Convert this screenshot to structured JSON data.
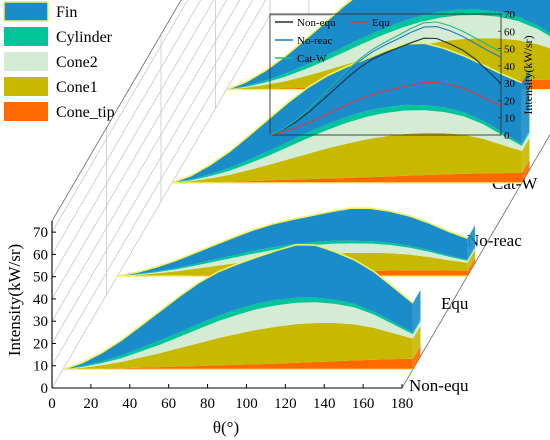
{
  "chart_data": {
    "type": "area",
    "x": [
      0,
      10,
      20,
      30,
      40,
      50,
      60,
      70,
      80,
      90,
      100,
      110,
      120,
      130,
      140,
      150,
      160,
      170,
      180
    ],
    "xlabel": "θ(°)",
    "xticks": [
      "0",
      "20",
      "40",
      "60",
      "80",
      "100",
      "120",
      "140",
      "160",
      "180"
    ],
    "xlim": [
      0,
      180
    ],
    "ylabel": "Intensity(kW/sr)",
    "yticks": [
      "0",
      "10",
      "20",
      "30",
      "40",
      "50",
      "60",
      "70"
    ],
    "ylim": [
      0,
      75
    ],
    "stack_order": [
      "Cone_tip",
      "Cone1",
      "Cone2",
      "Cylinder",
      "Fin"
    ],
    "legend": [
      {
        "name": "Fin",
        "color": "#1a8cca"
      },
      {
        "name": "Cylinder",
        "color": "#00c49a"
      },
      {
        "name": "Cone2",
        "color": "#d3ecd3"
      },
      {
        "name": "Cone1",
        "color": "#c7b800"
      },
      {
        "name": "Cone_tip",
        "color": "#ff6a00"
      }
    ],
    "total_line_color": "#f2f25a",
    "cases": [
      {
        "name": "Non-equ",
        "components": {
          "Cone_tip": [
            0,
            0.1,
            0.3,
            0.5,
            0.8,
            1.0,
            1.3,
            1.5,
            1.8,
            2.0,
            2.3,
            2.6,
            3.0,
            3.3,
            3.6,
            4.0,
            4.3,
            4.6,
            4.8
          ],
          "Cone1": [
            0,
            0.6,
            1.5,
            2.8,
            4.5,
            6.3,
            8.3,
            10.3,
            12.3,
            14.0,
            15.5,
            16.6,
            17.3,
            17.5,
            17.2,
            16.2,
            14.3,
            11.6,
            9.0
          ],
          "Cone2": [
            0,
            0.4,
            1.0,
            1.7,
            2.7,
            3.8,
            5.0,
            6.4,
            7.6,
            8.6,
            9.3,
            9.6,
            9.6,
            9.3,
            8.6,
            7.6,
            6.0,
            4.0,
            2.0
          ],
          "Cylinder": [
            0,
            0.4,
            0.8,
            1.2,
            1.6,
            1.9,
            2.1,
            2.3,
            2.4,
            2.5,
            2.5,
            2.4,
            2.3,
            2.1,
            1.9,
            1.6,
            1.3,
            1.0,
            0.8
          ],
          "Fin": [
            0,
            1.5,
            3.9,
            6.8,
            10.0,
            13.2,
            16.2,
            18.5,
            19.8,
            20.3,
            20.9,
            22.2,
            23.8,
            23.6,
            21.5,
            19.7,
            18.0,
            15.7,
            13.2
          ]
        },
        "total": [
          0,
          3.0,
          7.5,
          13.0,
          19.6,
          26.2,
          32.9,
          39.0,
          43.9,
          47.4,
          50.5,
          53.4,
          56.0,
          55.8,
          52.8,
          49.1,
          43.9,
          36.9,
          29.8
        ]
      },
      {
        "name": "Equ",
        "components": {
          "Cone_tip": [
            0,
            0.1,
            0.2,
            0.3,
            0.5,
            0.7,
            0.9,
            1.1,
            1.3,
            1.5,
            1.7,
            1.9,
            2.1,
            2.3,
            2.5,
            2.6,
            2.6,
            2.5,
            2.4
          ],
          "Cone1": [
            0,
            0.4,
            1.0,
            1.8,
            2.8,
            3.8,
            4.8,
            5.8,
            6.7,
            7.4,
            7.9,
            8.2,
            8.3,
            8.2,
            7.8,
            7.1,
            6.0,
            4.7,
            3.6
          ],
          "Cone2": [
            0,
            0.2,
            0.5,
            0.9,
            1.4,
            2.0,
            2.6,
            3.2,
            3.7,
            4.1,
            4.3,
            4.4,
            4.3,
            4.1,
            3.7,
            3.1,
            2.4,
            1.6,
            0.9
          ],
          "Cylinder": [
            0,
            0.2,
            0.4,
            0.6,
            0.8,
            1.0,
            1.1,
            1.2,
            1.3,
            1.3,
            1.3,
            1.3,
            1.2,
            1.1,
            1.0,
            0.9,
            0.7,
            0.5,
            0.4
          ],
          "Fin": [
            0,
            0.8,
            2.0,
            3.4,
            5.0,
            6.5,
            8.1,
            9.5,
            10.5,
            11.2,
            12.0,
            13.2,
            14.6,
            14.8,
            14.2,
            13.4,
            12.3,
            10.9,
            9.7
          ]
        },
        "total": [
          0,
          1.7,
          4.1,
          7.0,
          10.5,
          14.0,
          17.5,
          20.8,
          23.5,
          25.5,
          27.2,
          29.0,
          30.5,
          30.5,
          29.2,
          27.1,
          24.0,
          20.2,
          17.0
        ]
      },
      {
        "name": "No-reac",
        "components": {
          "Cone_tip": [
            0,
            0.1,
            0.3,
            0.5,
            0.8,
            1.1,
            1.4,
            1.7,
            2.0,
            2.2,
            2.5,
            2.8,
            3.2,
            3.5,
            3.8,
            4.1,
            4.3,
            4.4,
            4.5
          ],
          "Cone1": [
            0,
            0.7,
            1.7,
            3.1,
            5.0,
            7.0,
            9.2,
            11.4,
            13.5,
            15.4,
            17.0,
            18.1,
            18.8,
            19.0,
            18.6,
            17.5,
            15.5,
            12.6,
            9.8
          ],
          "Cone2": [
            0,
            0.4,
            1.1,
            1.9,
            3.0,
            4.2,
            5.6,
            7.0,
            8.3,
            9.4,
            10.1,
            10.5,
            10.5,
            10.1,
            9.4,
            8.3,
            6.6,
            4.4,
            2.3
          ],
          "Cylinder": [
            0,
            0.4,
            0.9,
            1.3,
            1.7,
            2.1,
            2.3,
            2.5,
            2.6,
            2.7,
            2.7,
            2.6,
            2.5,
            2.3,
            2.1,
            1.8,
            1.5,
            1.2,
            1.0
          ],
          "Fin": [
            0,
            1.7,
            4.3,
            7.5,
            11.0,
            14.5,
            17.8,
            20.3,
            21.8,
            22.5,
            23.4,
            25.4,
            27.4,
            27.8,
            26.5,
            25.4,
            25.1,
            26.1,
            27.4
          ]
        },
        "total": [
          0,
          3.3,
          8.3,
          14.3,
          21.5,
          28.9,
          36.3,
          42.9,
          48.2,
          52.2,
          55.7,
          59.4,
          62.4,
          62.7,
          60.4,
          57.1,
          53.0,
          48.7,
          45.0
        ]
      },
      {
        "name": "Cat-W",
        "components": {
          "Cone_tip": [
            0,
            0.1,
            0.3,
            0.5,
            0.8,
            1.1,
            1.4,
            1.7,
            2.0,
            2.3,
            2.6,
            2.9,
            3.3,
            3.6,
            3.9,
            4.2,
            4.4,
            4.5,
            4.6
          ],
          "Cone1": [
            0,
            0.7,
            1.8,
            3.2,
            5.1,
            7.2,
            9.5,
            11.7,
            13.9,
            15.8,
            17.4,
            18.6,
            19.3,
            19.5,
            19.1,
            18.0,
            16.0,
            13.0,
            10.2
          ],
          "Cone2": [
            0,
            0.4,
            1.1,
            2.0,
            3.1,
            4.3,
            5.7,
            7.2,
            8.5,
            9.6,
            10.4,
            10.8,
            10.8,
            10.4,
            9.7,
            8.6,
            6.8,
            4.6,
            2.4
          ],
          "Cylinder": [
            0,
            0.4,
            0.9,
            1.4,
            1.8,
            2.1,
            2.4,
            2.6,
            2.7,
            2.8,
            2.8,
            2.7,
            2.6,
            2.4,
            2.2,
            1.9,
            1.6,
            1.3,
            1.0
          ],
          "Fin": [
            0,
            1.8,
            4.4,
            7.7,
            11.3,
            14.9,
            18.3,
            20.9,
            22.5,
            23.3,
            24.4,
            26.7,
            28.9,
            29.5,
            28.4,
            27.4,
            27.4,
            28.6,
            30.0
          ]
        },
        "total": [
          0,
          3.4,
          8.5,
          14.8,
          22.1,
          29.6,
          37.3,
          44.1,
          49.6,
          53.8,
          57.6,
          61.7,
          64.9,
          65.4,
          63.3,
          60.1,
          56.2,
          52.0,
          48.2
        ]
      }
    ],
    "inset": {
      "ylabel": "Intensity(kW/sr)",
      "yticks": [
        "0",
        "10",
        "20",
        "30",
        "40",
        "50",
        "60",
        "70"
      ],
      "ylim": [
        0,
        70
      ],
      "xlim": [
        0,
        180
      ],
      "legend": [
        {
          "name": "Non-equ",
          "color": "#1c2f44"
        },
        {
          "name": "Equ",
          "color": "#e8333a"
        },
        {
          "name": "No-reac",
          "color": "#2277cc"
        },
        {
          "name": "Cat-W",
          "color": "#1fb98a"
        }
      ]
    }
  }
}
